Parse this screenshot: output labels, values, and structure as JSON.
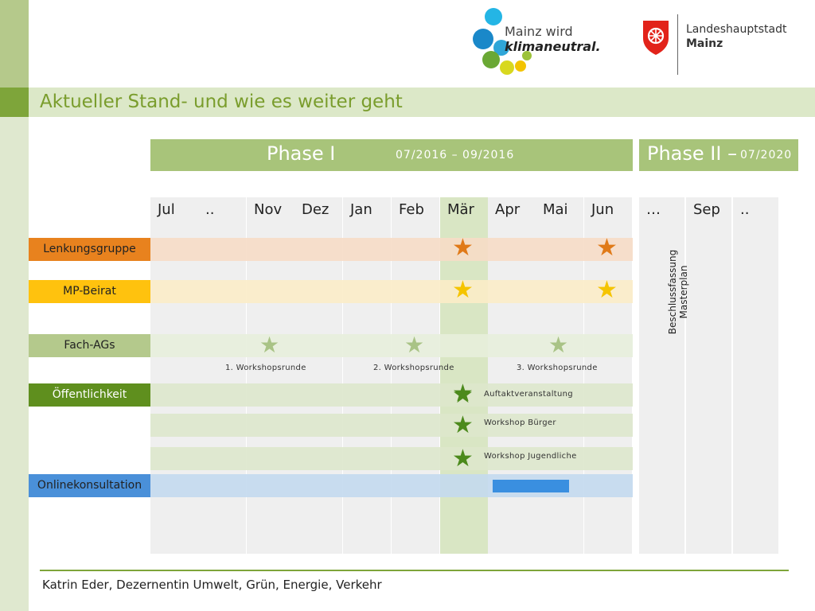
{
  "title": "Aktueller Stand- und wie es weiter geht",
  "logo": {
    "line1": "Mainz wird",
    "line2": "klimaneutral."
  },
  "city": {
    "line1": "Landeshauptstadt",
    "line2": "Mainz"
  },
  "phase1": {
    "name": "Phase I",
    "date": "07/2016 – 09/2016"
  },
  "phase2": {
    "name": "Phase II –",
    "date": "07/2020"
  },
  "months": [
    "Jul",
    "..",
    "Nov",
    "Dez",
    "Jan",
    "Feb",
    "Mär",
    "Apr",
    "Mai",
    "Jun"
  ],
  "phase2_months": [
    "…",
    "Sep",
    ".."
  ],
  "highlight_month": "Mär",
  "rows": [
    {
      "label": "Lenkungsgruppe",
      "color": "#e8821e",
      "bar_color": "#f6dcc7",
      "label_text_color": "#222222",
      "stars": [
        "Mär",
        "Jun"
      ],
      "star_color": "#e07a18"
    },
    {
      "label": "MP-Beirat",
      "color": "#ffc20e",
      "bar_color": "#fbecc8",
      "label_text_color": "#222222",
      "stars": [
        "Mär",
        "Jun"
      ],
      "star_color": "#f5c400"
    },
    {
      "label": "Fach-AGs",
      "color": "#b4c98c",
      "bar_color": "#e7eedc",
      "label_text_color": "#222222",
      "stars": [
        "Nov",
        "Feb",
        "Mai"
      ],
      "star_color": "#a9c386"
    },
    {
      "label": "Öffentlichkeit",
      "color": "#5f8f1e",
      "bar_color": "#dde7cc",
      "label_text_color": "#ffffff",
      "stars": [
        "Mär"
      ],
      "star_color": "#4c8a1c"
    },
    {
      "label": "Onlinekonsultation",
      "color": "#4a90d9",
      "bar_color": "#c3d9ee",
      "label_text_color": "#222222",
      "stars": [],
      "star_color": "#2f7fd6"
    }
  ],
  "workshops": [
    "1. Workshopsrunde",
    "2. Workshopsrunde",
    "3. Workshopsrunde"
  ],
  "public_events": [
    "Auftaktveranstaltung",
    "Workshop Bürger",
    "Workshop Jugendliche"
  ],
  "online_span": {
    "from": "Apr",
    "to": "Mai"
  },
  "phase2_text": {
    "line1": "Beschlussfassung",
    "line2": "Masterplan"
  },
  "footer": "Katrin Eder, Dezernentin Umwelt, Grün, Energie, Verkehr",
  "colors": {
    "accent": "#7ea53a",
    "title": "#7a9d2d",
    "phase": "#a8c47a",
    "highlight_column": "#d9e6c4"
  }
}
